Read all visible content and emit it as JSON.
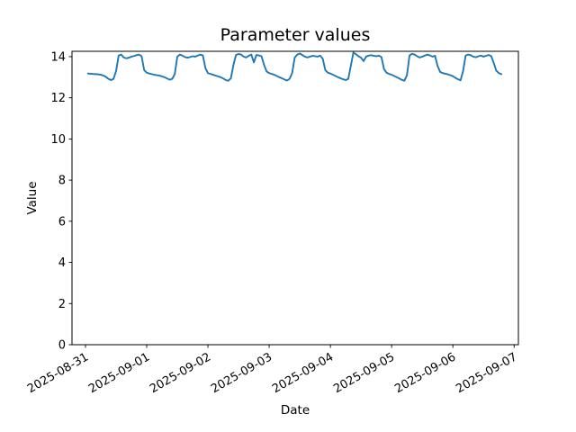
{
  "figure": {
    "title": "Parameter values",
    "xlabel": "Date",
    "ylabel": "Value",
    "background": "#ffffff"
  },
  "chart_data": {
    "type": "line",
    "title": "Parameter values",
    "xlabel": "Date",
    "ylabel": "Value",
    "grid": false,
    "legend_position": "none",
    "line_color": "#1f77b4",
    "line_width": 1.9,
    "x_tick_labels": [
      "2025-08-31",
      "2025-09-01",
      "2025-09-02",
      "2025-09-03",
      "2025-09-04",
      "2025-09-05",
      "2025-09-06",
      "2025-09-07"
    ],
    "x_tick_positions_days": [
      0,
      1,
      2,
      3,
      4,
      5,
      6,
      7
    ],
    "x_tick_rotation_deg": 30,
    "y_ticks": [
      0,
      2,
      4,
      6,
      8,
      10,
      12,
      14
    ],
    "xlim_days": [
      -0.22,
      7.07
    ],
    "ylim": [
      0,
      14.26
    ],
    "series": [
      {
        "name": "parameter-values",
        "x_unit": "hours since 2025-08-31 00:00",
        "x_start": 1,
        "x_step": 1,
        "values": [
          13.18,
          13.17,
          13.16,
          13.15,
          13.14,
          13.12,
          13.08,
          13.02,
          12.92,
          12.86,
          12.92,
          13.3,
          14.05,
          14.1,
          13.96,
          13.92,
          13.95,
          14.0,
          14.03,
          14.07,
          14.1,
          14.02,
          13.35,
          13.22,
          13.18,
          13.15,
          13.12,
          13.1,
          13.08,
          13.04,
          13.0,
          12.94,
          12.88,
          12.92,
          13.15,
          14.0,
          14.1,
          14.05,
          13.98,
          13.95,
          13.98,
          14.02,
          14.0,
          14.05,
          14.1,
          14.06,
          13.45,
          13.2,
          13.16,
          13.12,
          13.08,
          13.04,
          13.0,
          12.94,
          12.86,
          12.83,
          12.95,
          13.6,
          14.08,
          14.13,
          14.1,
          14.0,
          13.96,
          14.04,
          14.1,
          13.72,
          14.08,
          14.06,
          14.02,
          13.6,
          13.28,
          13.2,
          13.16,
          13.12,
          13.06,
          13.0,
          12.95,
          12.89,
          12.84,
          12.92,
          13.2,
          13.95,
          14.1,
          14.15,
          14.08,
          14.0,
          13.96,
          14.0,
          14.04,
          14.02,
          14.0,
          14.05,
          13.9,
          13.35,
          13.22,
          13.18,
          13.12,
          13.06,
          13.0,
          12.95,
          12.9,
          12.86,
          12.92,
          13.55,
          14.2,
          14.12,
          14.02,
          13.95,
          13.78,
          14.0,
          14.05,
          14.07,
          14.04,
          14.02,
          14.05,
          13.98,
          13.4,
          13.22,
          13.16,
          13.12,
          13.06,
          13.0,
          12.94,
          12.87,
          12.83,
          13.1,
          14.05,
          14.14,
          14.1,
          14.02,
          13.96,
          14.0,
          14.05,
          14.1,
          14.06,
          14.0,
          14.04,
          13.55,
          13.26,
          13.2,
          13.17,
          13.14,
          13.1,
          13.05,
          12.97,
          12.9,
          12.85,
          13.3,
          14.05,
          14.1,
          14.07,
          14.0,
          13.97,
          14.02,
          14.05,
          14.0,
          14.04,
          14.08,
          14.03,
          13.7,
          13.32,
          13.2,
          13.15
        ]
      }
    ]
  }
}
